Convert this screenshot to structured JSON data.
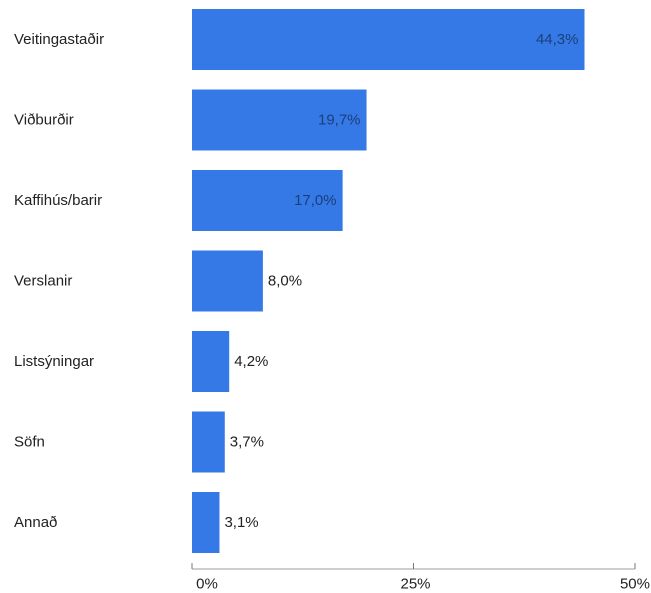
{
  "chart_data": {
    "type": "bar",
    "orientation": "horizontal",
    "categories": [
      "Veitingastaðir",
      "Viðburðir",
      "Kaffihús/barir",
      "Verslanir",
      "Listsýningar",
      "Söfn",
      "Annað"
    ],
    "values": [
      44.3,
      19.7,
      17.0,
      8.0,
      4.2,
      3.7,
      3.1
    ],
    "data_labels": [
      "44,3%",
      "19,7%",
      "17,0%",
      "8,0%",
      "4,2%",
      "3,7%",
      "3,1%"
    ],
    "xlim": [
      0,
      50
    ],
    "x_ticks": [
      {
        "value": 0,
        "label": "0%"
      },
      {
        "value": 25,
        "label": "25%"
      },
      {
        "value": 50,
        "label": "50%"
      }
    ],
    "bar_color": "#3579e6",
    "grid": false,
    "legend": "none"
  }
}
